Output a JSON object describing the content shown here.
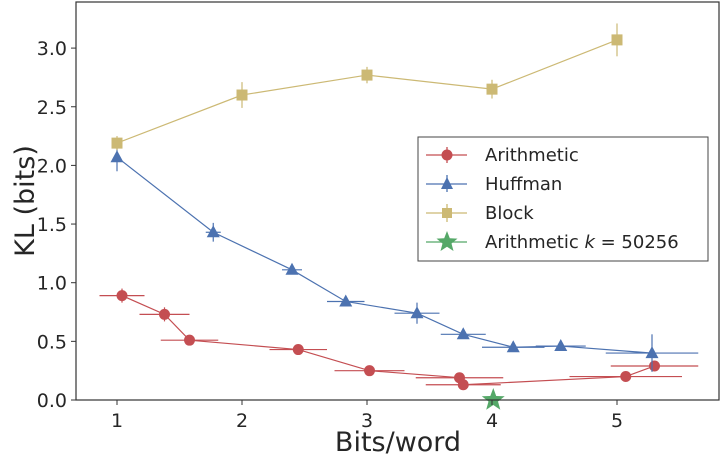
{
  "chart_data": {
    "type": "line",
    "title": "",
    "xlabel": "Bits/word",
    "ylabel": "KL (bits)",
    "xlim": [
      0.67,
      5.73
    ],
    "ylim": [
      0.0,
      3.4
    ],
    "xticks": [
      1,
      2,
      3,
      4,
      5
    ],
    "xtick_labels": [
      "1",
      "2",
      "3",
      "4",
      "5"
    ],
    "yticks": [
      0.0,
      0.5,
      1.0,
      1.5,
      2.0,
      2.5,
      3.0
    ],
    "ytick_labels": [
      "0.0",
      "0.5",
      "1.0",
      "1.5",
      "2.0",
      "2.5",
      "3.0"
    ],
    "grid": false,
    "legend_position": "center right",
    "series": [
      {
        "name": "Arithmetic",
        "color": "#c44e52",
        "marker": "circle",
        "x": [
          1.04,
          1.38,
          1.58,
          2.45,
          3.02,
          3.74,
          3.77,
          5.07,
          5.3
        ],
        "y": [
          0.89,
          0.73,
          0.51,
          0.43,
          0.25,
          0.19,
          0.13,
          0.2,
          0.29
        ],
        "xerr": [
          0.18,
          0.2,
          0.23,
          0.23,
          0.28,
          0.35,
          0.3,
          0.45,
          0.35
        ],
        "yerr": [
          0.06,
          0.06,
          0.03,
          0.03,
          0.02,
          0.02,
          0.02,
          0.02,
          0.03
        ]
      },
      {
        "name": "Huffman",
        "color": "#4c72b0",
        "marker": "triangle",
        "x": [
          1.0,
          1.77,
          2.4,
          2.83,
          3.4,
          3.77,
          4.17,
          4.55,
          5.28
        ],
        "y": [
          2.07,
          1.43,
          1.11,
          0.84,
          0.74,
          0.56,
          0.45,
          0.46,
          0.4
        ],
        "xerr": [
          0.02,
          0.06,
          0.08,
          0.15,
          0.18,
          0.18,
          0.25,
          0.2,
          0.37
        ],
        "yerr": [
          0.12,
          0.08,
          0.04,
          0.03,
          0.09,
          0.03,
          0.02,
          0.02,
          0.16
        ]
      },
      {
        "name": "Block",
        "color": "#ccb974",
        "marker": "square",
        "x": [
          1.0,
          2.0,
          3.0,
          4.0,
          5.0
        ],
        "y": [
          2.19,
          2.6,
          2.77,
          2.65,
          3.07
        ],
        "xerr": [
          0,
          0,
          0,
          0,
          0
        ],
        "yerr": [
          0.06,
          0.11,
          0.07,
          0.08,
          0.14
        ]
      },
      {
        "name": "Arithmetic k = 50256",
        "color": "#55a868",
        "marker": "star",
        "x": [
          4.01
        ],
        "y": [
          0.0
        ],
        "xerr": [
          0
        ],
        "yerr": [
          0
        ]
      }
    ]
  },
  "legend": {
    "items": [
      {
        "label": "Arithmetic"
      },
      {
        "label": "Huffman"
      },
      {
        "label": "Block"
      },
      {
        "label_prefix": "Arithmetic ",
        "label_italic": "k",
        "label_suffix": " = 50256"
      }
    ]
  }
}
